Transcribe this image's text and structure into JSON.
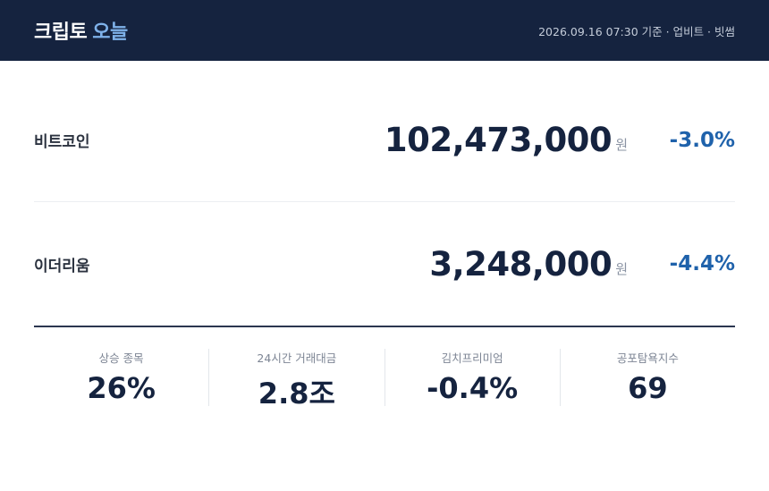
{
  "header": {
    "title": "크립토",
    "title_accent": "오늘",
    "subtitle": "2026.09.16 07:30 기준 · 업비트 · 빗썸"
  },
  "assets": [
    {
      "name": "비트코인",
      "price": "102,473,000",
      "unit": "원",
      "change": "-3.0%"
    },
    {
      "name": "이더리움",
      "price": "3,248,000",
      "unit": "원",
      "change": "-4.4%"
    }
  ],
  "stats": [
    {
      "label": "상승 종목",
      "value": "26%"
    },
    {
      "label": "24시간 거래대금",
      "value": "2.8조"
    },
    {
      "label": "김치프리미엄",
      "value": "-0.4%"
    },
    {
      "label": "공포탐욕지수",
      "value": "69"
    }
  ]
}
